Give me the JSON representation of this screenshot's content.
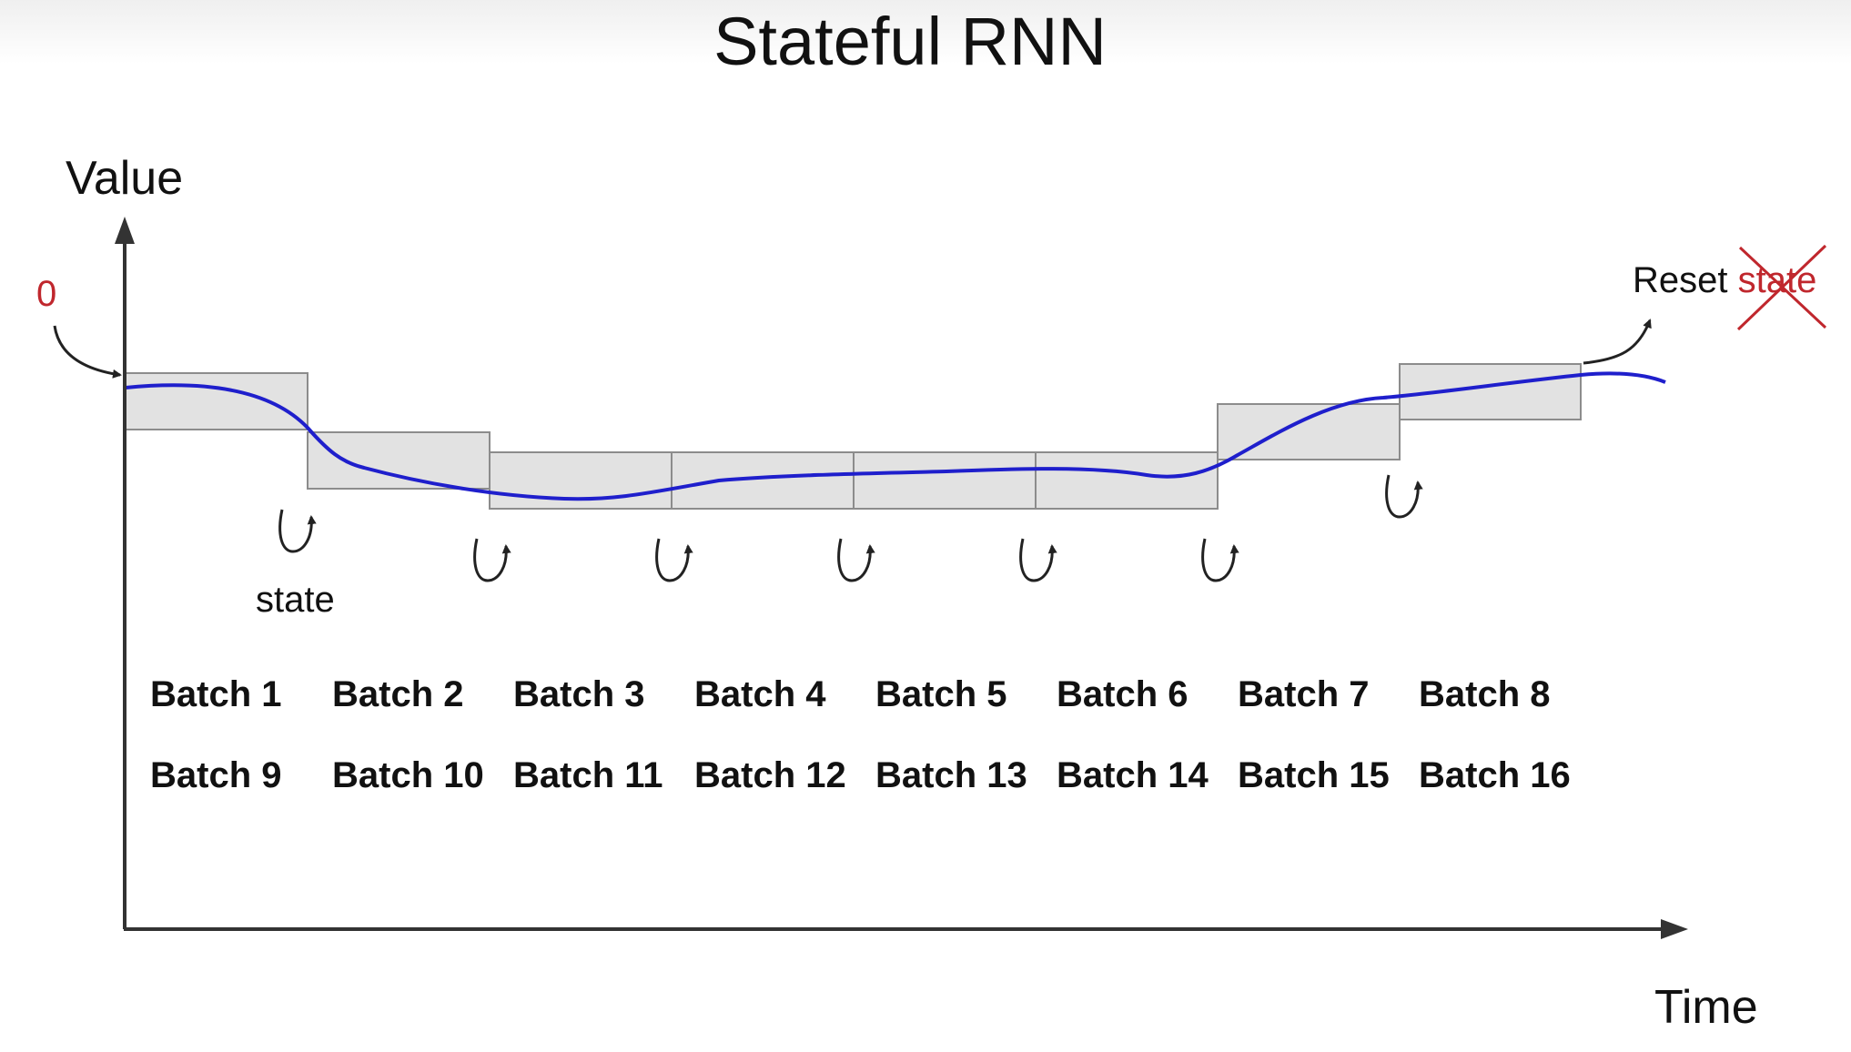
{
  "title": "Stateful RNN",
  "y_axis_label": "Value",
  "x_axis_label": "Time",
  "initial_state_label": "0",
  "state_label": "state",
  "reset": {
    "prefix": "Reset",
    "word": "state"
  },
  "batch_rows": [
    [
      "Batch 1",
      "Batch 2",
      "Batch 3",
      "Batch 4",
      "Batch 5",
      "Batch 6",
      "Batch 7",
      "Batch 8"
    ],
    [
      "Batch 9",
      "Batch 10",
      "Batch 11",
      "Batch 12",
      "Batch 13",
      "Batch 14",
      "Batch 15",
      "Batch 16"
    ]
  ],
  "colors": {
    "curve": "#1f1fcc",
    "box_fill": "#e2e2e2",
    "box_stroke": "#8c8c8c",
    "axis": "#333333",
    "accent_red": "#c0272d"
  }
}
